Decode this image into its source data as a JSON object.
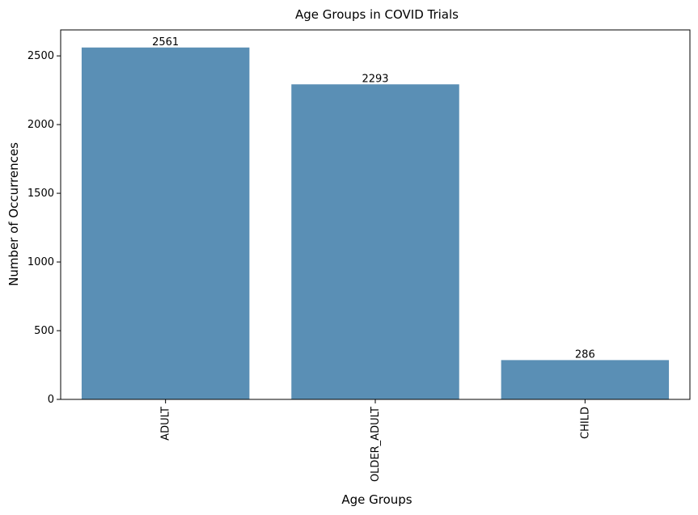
{
  "chart_data": {
    "type": "bar",
    "title": "Age Groups in COVID Trials",
    "xlabel": "Age Groups",
    "ylabel": "Number of Occurrences",
    "categories": [
      "ADULT",
      "OLDER_ADULT",
      "CHILD"
    ],
    "values": [
      2561,
      2293,
      286
    ],
    "data_labels": [
      "2561",
      "2293",
      "286"
    ],
    "yticks": [
      0,
      500,
      1000,
      1500,
      2000,
      2500
    ],
    "ytick_labels": [
      "0",
      "500",
      "1000",
      "1500",
      "2000",
      "2500"
    ],
    "ylim": [
      0,
      2689
    ],
    "grid": false,
    "legend": "none",
    "bar_color": "#5a8fb5",
    "x_tick_rotation": "vertical"
  }
}
